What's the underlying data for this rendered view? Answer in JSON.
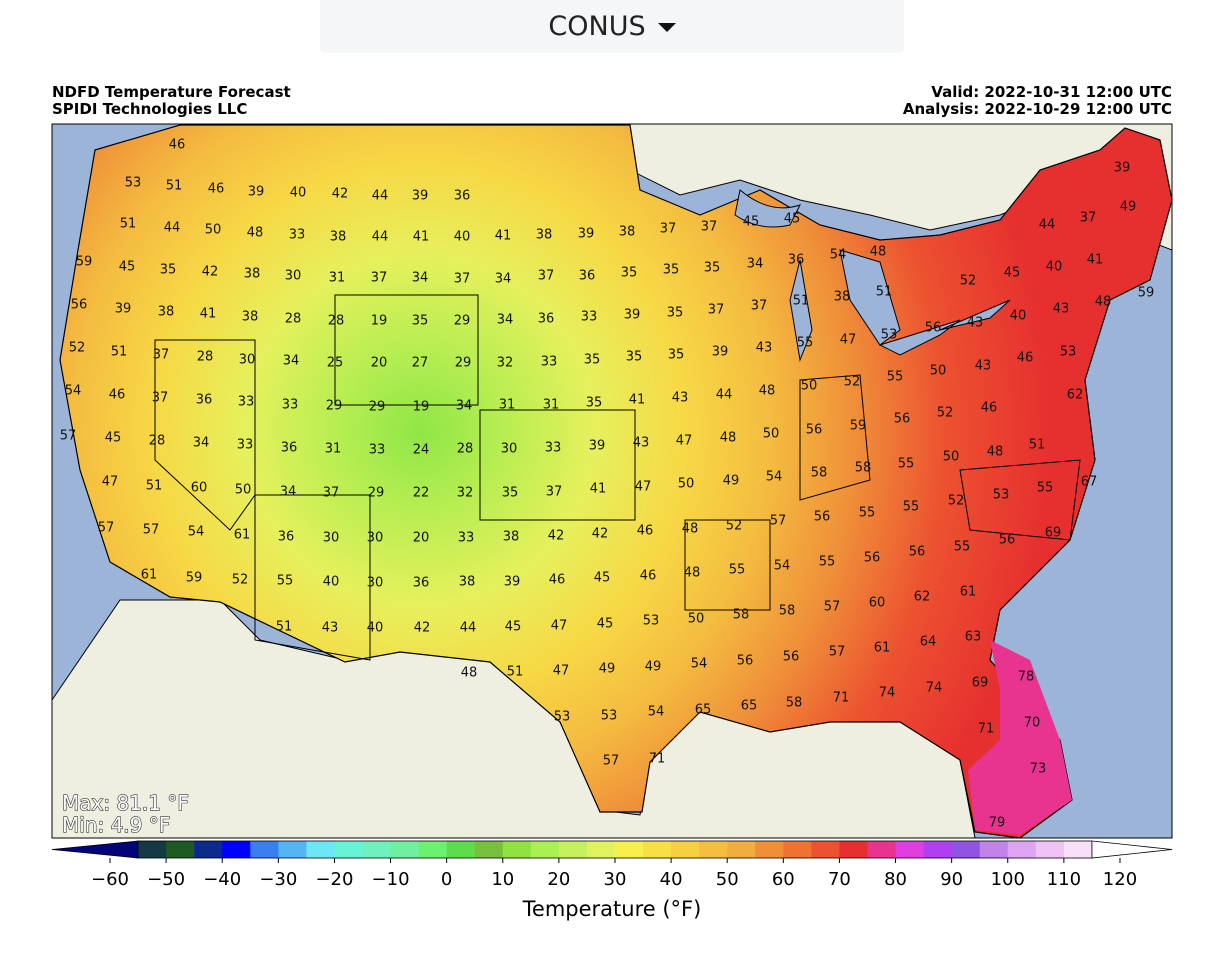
{
  "selector": {
    "label": "CONUS"
  },
  "header": {
    "title": "NDFD Temperature Forecast",
    "source": "SPIDI Technologies LLC",
    "valid": "Valid: 2022-10-31 12:00 UTC",
    "analysis": "Analysis: 2022-10-29 12:00 UTC"
  },
  "map": {
    "max": "Max: 81.1 °F",
    "min": "Min: 4.9 °F",
    "labels": [
      [
        46
      ],
      [
        53,
        51,
        46,
        39,
        40,
        42,
        44,
        39,
        36
      ],
      [
        51,
        44,
        50,
        48,
        33,
        38,
        44,
        41,
        40,
        41,
        38,
        39,
        38,
        37,
        37,
        45,
        45
      ],
      [
        59,
        45,
        35,
        42,
        38,
        30,
        31,
        37,
        34,
        37,
        34,
        37,
        36,
        35,
        35,
        35,
        34,
        36,
        54,
        48
      ],
      [
        56,
        39,
        38,
        41,
        38,
        28,
        28,
        19,
        35,
        29,
        34,
        36,
        33,
        39,
        35,
        37,
        37,
        51,
        38,
        51
      ],
      [
        44,
        37,
        49,
        39
      ],
      [
        52,
        45,
        40,
        41,
        59,
        43,
        48,
        40,
        43,
        56,
        53
      ],
      [
        52,
        51,
        37,
        28,
        30,
        34,
        25,
        20,
        27,
        29,
        32,
        33,
        35,
        35,
        35,
        39,
        43,
        55,
        47
      ],
      [
        53,
        46,
        43,
        50,
        55,
        52,
        50
      ],
      [
        54,
        46,
        37,
        36,
        33,
        33,
        29,
        29,
        19,
        34,
        31,
        31,
        35,
        41,
        43,
        44,
        48,
        62,
        46,
        52,
        56,
        59,
        56,
        50
      ],
      [
        57,
        45,
        28,
        34,
        33,
        36,
        31,
        33,
        24,
        28,
        30,
        33,
        39,
        43,
        47,
        48,
        51,
        48,
        50,
        55,
        58,
        58,
        54
      ],
      [
        47,
        51,
        60,
        50,
        34,
        37,
        29,
        22,
        32,
        35,
        37,
        41,
        47,
        50,
        49,
        67,
        55,
        53,
        52,
        55,
        55,
        56,
        57,
        52,
        48
      ],
      [
        57,
        57,
        54,
        61,
        36,
        30,
        30,
        20,
        33,
        38,
        42,
        42,
        46,
        69,
        56,
        55,
        56,
        56,
        55,
        54,
        55,
        48
      ],
      [
        61,
        59,
        52,
        55,
        40,
        30,
        36,
        38,
        39,
        46,
        45,
        46,
        61,
        62,
        60,
        57,
        58,
        58,
        50
      ],
      [
        51,
        43,
        40,
        42,
        44,
        45,
        47,
        45,
        53,
        63,
        64,
        61,
        57,
        56,
        56,
        54
      ],
      [
        48,
        51,
        47,
        49,
        49,
        78,
        69,
        74,
        74,
        71,
        58,
        65,
        65,
        54
      ],
      [
        53,
        53,
        71,
        70
      ],
      [
        57,
        71,
        73
      ],
      [
        79
      ]
    ]
  },
  "colorbar": {
    "label": "Temperature (°F)",
    "under": "#02047a",
    "over": "#ffffff",
    "start": -55,
    "step": 5,
    "colors": [
      "#143a46",
      "#1f5a24",
      "#0c2a8c",
      "#0000ff",
      "#3a7fef",
      "#55b5f2",
      "#6de6f6",
      "#68f2d6",
      "#70f0bc",
      "#6ff0a0",
      "#6cf070",
      "#5fdc4e",
      "#78bf3e",
      "#92e142",
      "#abf052",
      "#c7f05e",
      "#e1f25e",
      "#f7ef4e",
      "#f8df48",
      "#f7cf42",
      "#f4bf41",
      "#f0ae40",
      "#ef9039",
      "#ee7232",
      "#ec5230",
      "#e6302f",
      "#e8338f",
      "#df3fe1",
      "#b03ff0",
      "#9153e2",
      "#c083e9",
      "#dfa4f1",
      "#efc3f3",
      "#f8e1f8"
    ],
    "ticks": [
      {
        "value": -60,
        "label": "−60"
      },
      {
        "value": -50,
        "label": "−50"
      },
      {
        "value": -40,
        "label": "−40"
      },
      {
        "value": -30,
        "label": "−30"
      },
      {
        "value": -20,
        "label": "−20"
      },
      {
        "value": -10,
        "label": "−10"
      },
      0,
      10,
      20,
      30,
      40,
      50,
      60,
      70,
      80,
      90,
      100,
      110,
      120
    ]
  }
}
